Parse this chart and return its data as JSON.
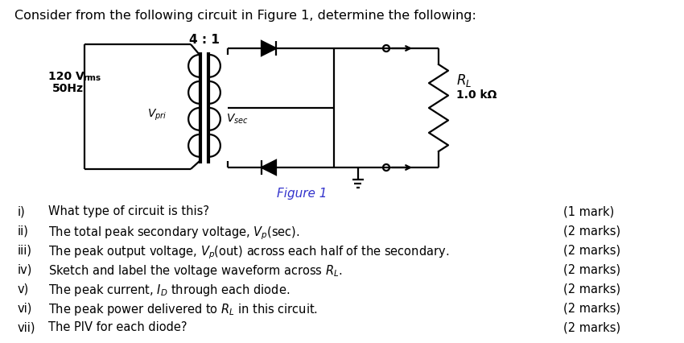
{
  "background_color": "#ffffff",
  "title_text": "Consider from the following circuit in Figure 1, determine the following:",
  "title_fontsize": 11.5,
  "figure_caption": "Figure 1",
  "questions": [
    {
      "roman": "i)",
      "text1": "What type of circuit is this?",
      "mark": "(1 mark)"
    },
    {
      "roman": "ii)",
      "text1": "The total peak secondary voltage, V",
      "sub2": "p",
      "text2": "(sec).",
      "mark": "(2 marks)"
    },
    {
      "roman": "iii)",
      "text1": "The peak output voltage, V",
      "sub2": "p",
      "text2": "(out) across each half of the secondary.",
      "mark": "(2 marks)"
    },
    {
      "roman": "iv)",
      "text1": "Sketch and label the voltage waveform across R",
      "sub2": "L",
      "text2": ".",
      "mark": "(2 marks)"
    },
    {
      "roman": "v)",
      "text1": "The peak current, I",
      "sub2": "D",
      "text2": " through each diode.",
      "mark": "(2 marks)"
    },
    {
      "roman": "vi)",
      "text1": "The peak power delivered to R",
      "sub2": "L",
      "text2": " in this circuit.",
      "mark": "(2 marks)"
    },
    {
      "roman": "vii)",
      "text1": "The PIV for each diode?",
      "mark": "(2 marks)"
    }
  ],
  "text_color": "#000000",
  "circuit_color": "#000000",
  "caption_color": "#3333cc"
}
